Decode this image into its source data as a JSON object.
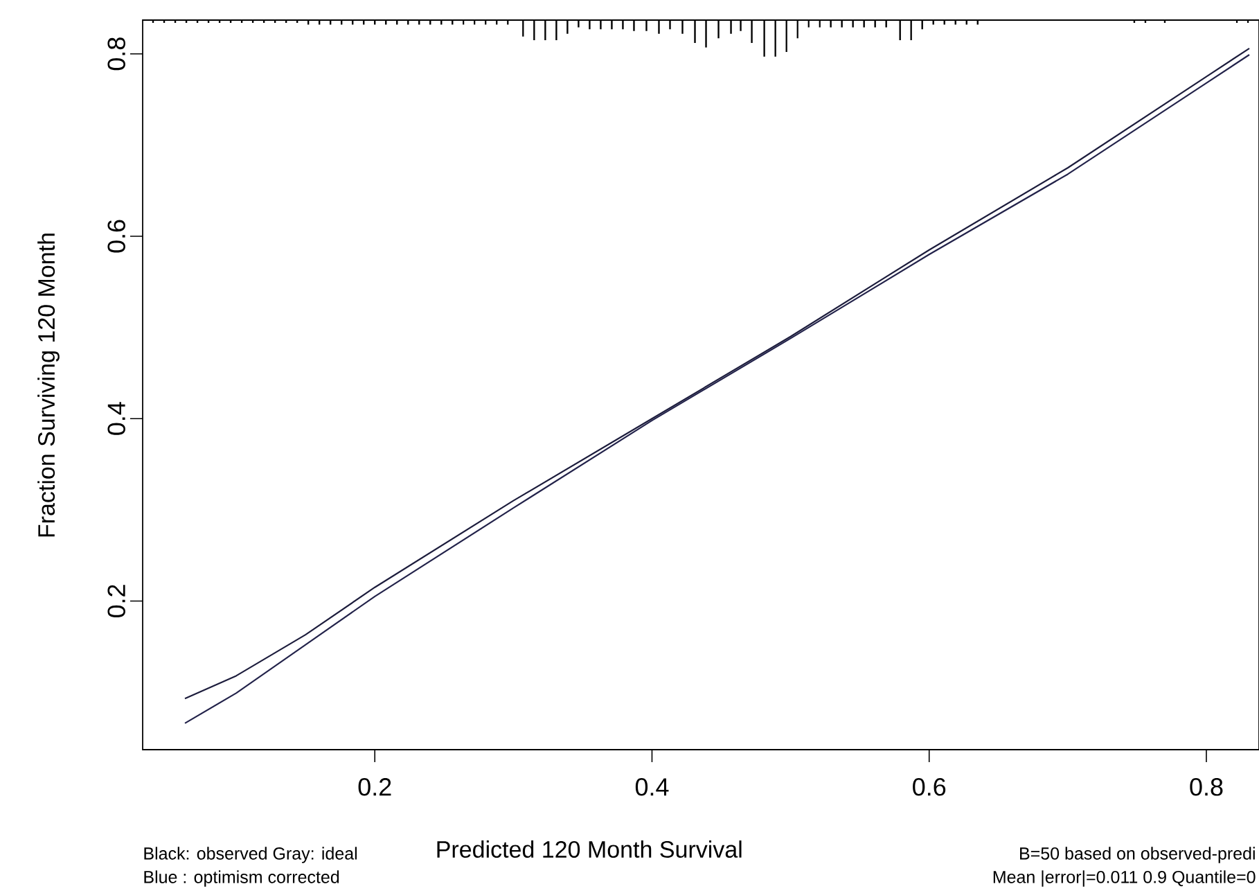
{
  "chart_data": {
    "type": "line",
    "xlabel": "Predicted  120 Month Survival",
    "ylabel": "Fraction Surviving 120 Month",
    "xlim": [
      0.0325,
      0.838
    ],
    "ylim": [
      0.037,
      0.837
    ],
    "xticks": [
      0.2,
      0.4,
      0.6,
      0.8
    ],
    "yticks": [
      0.2,
      0.4,
      0.6,
      0.8
    ],
    "grid": false,
    "series": [
      {
        "color": "#1c1c3c",
        "x": [
          0.063,
          0.1,
          0.15,
          0.2,
          0.3,
          0.4,
          0.5,
          0.6,
          0.7,
          0.8,
          0.831
        ],
        "values": [
          0.093,
          0.118,
          0.163,
          0.215,
          0.31,
          0.4,
          0.49,
          0.585,
          0.675,
          0.775,
          0.806
        ]
      },
      {
        "color": "#22224a",
        "x": [
          0.063,
          0.1,
          0.15,
          0.2,
          0.3,
          0.4,
          0.5,
          0.6,
          0.7,
          0.8,
          0.831
        ],
        "values": [
          0.066,
          0.099,
          0.152,
          0.205,
          0.302,
          0.398,
          0.488,
          0.58,
          0.668,
          0.768,
          0.799
        ]
      },
      {
        "type": "bar",
        "color": "#000000",
        "x": [
          0.04,
          0.048,
          0.056,
          0.064,
          0.072,
          0.08,
          0.088,
          0.096,
          0.104,
          0.112,
          0.12,
          0.128,
          0.136,
          0.144,
          0.152,
          0.16,
          0.168,
          0.176,
          0.184,
          0.192,
          0.2,
          0.208,
          0.216,
          0.224,
          0.232,
          0.24,
          0.248,
          0.256,
          0.264,
          0.272,
          0.28,
          0.288,
          0.296,
          0.307,
          0.315,
          0.323,
          0.331,
          0.339,
          0.347,
          0.355,
          0.363,
          0.371,
          0.379,
          0.387,
          0.396,
          0.405,
          0.413,
          0.422,
          0.431,
          0.439,
          0.448,
          0.457,
          0.464,
          0.472,
          0.481,
          0.489,
          0.497,
          0.505,
          0.513,
          0.521,
          0.529,
          0.537,
          0.545,
          0.553,
          0.561,
          0.569,
          0.579,
          0.587,
          0.595,
          0.603,
          0.611,
          0.619,
          0.627,
          0.635,
          0.748,
          0.756,
          0.77,
          0.822,
          0.83
        ],
        "base": [
          0.837,
          0.837,
          0.837,
          0.837,
          0.837,
          0.837,
          0.837,
          0.837,
          0.837,
          0.837,
          0.837,
          0.837,
          0.837,
          0.837,
          0.837,
          0.837,
          0.837,
          0.837,
          0.837,
          0.837,
          0.837,
          0.837,
          0.837,
          0.837,
          0.837,
          0.837,
          0.837,
          0.837,
          0.837,
          0.837,
          0.837,
          0.837,
          0.837,
          0.837,
          0.837,
          0.837,
          0.837,
          0.837,
          0.837,
          0.837,
          0.837,
          0.837,
          0.837,
          0.837,
          0.837,
          0.837,
          0.837,
          0.837,
          0.837,
          0.837,
          0.837,
          0.837,
          0.837,
          0.837,
          0.837,
          0.837,
          0.837,
          0.837,
          0.837,
          0.837,
          0.837,
          0.837,
          0.837,
          0.837,
          0.837,
          0.837,
          0.837,
          0.837,
          0.837,
          0.837,
          0.837,
          0.837,
          0.837,
          0.837,
          0.837,
          0.837,
          0.837,
          0.837,
          0.837
        ],
        "values": [
          -0.003,
          -0.003,
          -0.003,
          -0.003,
          -0.003,
          -0.003,
          -0.003,
          -0.003,
          -0.003,
          -0.003,
          -0.003,
          -0.003,
          -0.003,
          -0.003,
          -0.005,
          -0.005,
          -0.005,
          -0.005,
          -0.005,
          -0.005,
          -0.005,
          -0.005,
          -0.005,
          -0.005,
          -0.005,
          -0.005,
          -0.005,
          -0.005,
          -0.005,
          -0.005,
          -0.005,
          -0.005,
          -0.005,
          -0.018,
          -0.022,
          -0.022,
          -0.022,
          -0.015,
          -0.008,
          -0.01,
          -0.01,
          -0.01,
          -0.01,
          -0.012,
          -0.012,
          -0.015,
          -0.01,
          -0.015,
          -0.025,
          -0.03,
          -0.02,
          -0.015,
          -0.012,
          -0.025,
          -0.04,
          -0.04,
          -0.035,
          -0.02,
          -0.008,
          -0.008,
          -0.008,
          -0.008,
          -0.008,
          -0.008,
          -0.008,
          -0.008,
          -0.022,
          -0.022,
          -0.01,
          -0.005,
          -0.005,
          -0.005,
          -0.005,
          -0.005,
          -0.003,
          -0.003,
          -0.003,
          -0.003,
          -0.003
        ]
      }
    ],
    "annotations": [
      "Black: observed Gray: ideal",
      "Blue : optimism corrected",
      "B=50 based on observed-predi",
      "Mean |error|=0.011  0.9 Quantile=0"
    ]
  }
}
